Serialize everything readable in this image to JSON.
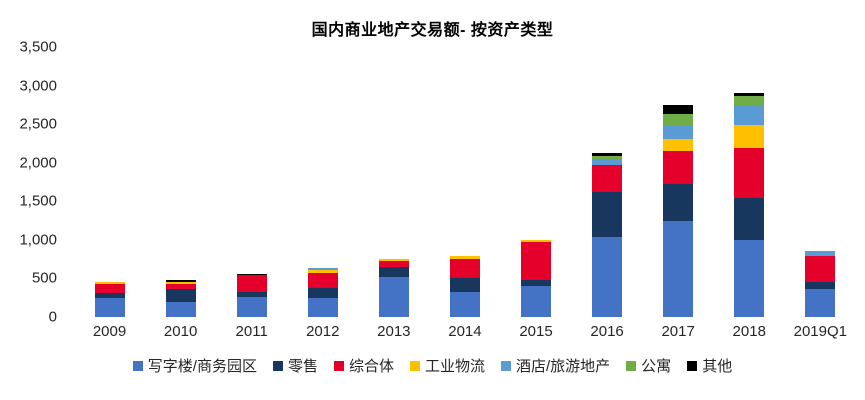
{
  "chart_data": {
    "type": "bar",
    "stacked": true,
    "title": "国内商业地产交易额- 按资产类型",
    "grid": false,
    "legend_position": "bottom",
    "ylim": [
      0,
      3500
    ],
    "yticks": [
      {
        "value": 0,
        "label": "0"
      },
      {
        "value": 500,
        "label": "500"
      },
      {
        "value": 1000,
        "label": "1,000"
      },
      {
        "value": 1500,
        "label": "1,500"
      },
      {
        "value": 2000,
        "label": "2,000"
      },
      {
        "value": 2500,
        "label": "2,500"
      },
      {
        "value": 3000,
        "label": "3,000"
      },
      {
        "value": 3500,
        "label": "3,500"
      }
    ],
    "categories": [
      "2009",
      "2010",
      "2011",
      "2012",
      "2013",
      "2014",
      "2015",
      "2016",
      "2017",
      "2018",
      "2019Q1"
    ],
    "series": [
      {
        "name": "写字楼/商务园区",
        "color": "#4472C4",
        "values": [
          250,
          200,
          255,
          250,
          525,
          320,
          405,
          1035,
          1240,
          1000,
          365
        ]
      },
      {
        "name": "零售",
        "color": "#17375E",
        "values": [
          65,
          160,
          70,
          130,
          120,
          185,
          70,
          580,
          480,
          540,
          95
        ]
      },
      {
        "name": "综合体",
        "color": "#E4002B",
        "values": [
          110,
          65,
          215,
          195,
          80,
          250,
          495,
          360,
          430,
          650,
          335
        ]
      },
      {
        "name": "工业物流",
        "color": "#FFC000",
        "values": [
          25,
          30,
          0,
          35,
          25,
          30,
          30,
          0,
          155,
          295,
          0
        ]
      },
      {
        "name": "酒店/旅游地产",
        "color": "#5B9BD5",
        "values": [
          0,
          0,
          0,
          25,
          0,
          0,
          0,
          80,
          175,
          255,
          60
        ]
      },
      {
        "name": "公寓",
        "color": "#70AD47",
        "values": [
          0,
          0,
          0,
          0,
          0,
          0,
          0,
          35,
          150,
          120,
          0
        ]
      },
      {
        "name": "其他",
        "color": "#000000",
        "values": [
          0,
          25,
          20,
          0,
          0,
          0,
          0,
          40,
          125,
          40,
          0
        ]
      }
    ]
  }
}
